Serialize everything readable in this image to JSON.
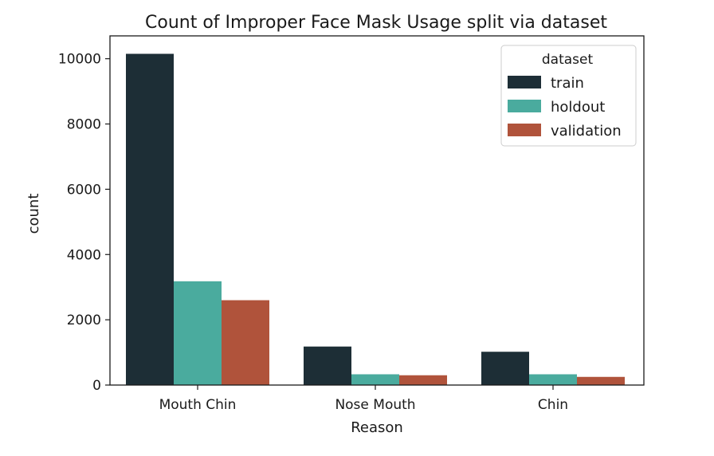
{
  "chart_data": {
    "type": "bar",
    "title": "Count of Improper Face Mask Usage split via dataset",
    "xlabel": "Reason",
    "ylabel": "count",
    "categories": [
      "Mouth Chin",
      "Nose Mouth",
      "Chin"
    ],
    "series": [
      {
        "name": "train",
        "color": "#1d2e36",
        "values": [
          10150,
          1180,
          1020
        ]
      },
      {
        "name": "holdout",
        "color": "#4aab9e",
        "values": [
          3180,
          330,
          330
        ]
      },
      {
        "name": "validation",
        "color": "#b0533b",
        "values": [
          2600,
          300,
          250
        ]
      }
    ],
    "ylim": [
      0,
      10700
    ],
    "yticks": [
      0,
      2000,
      4000,
      6000,
      8000,
      10000
    ],
    "grid": false,
    "legend": {
      "title": "dataset",
      "placement": "top-right"
    }
  }
}
